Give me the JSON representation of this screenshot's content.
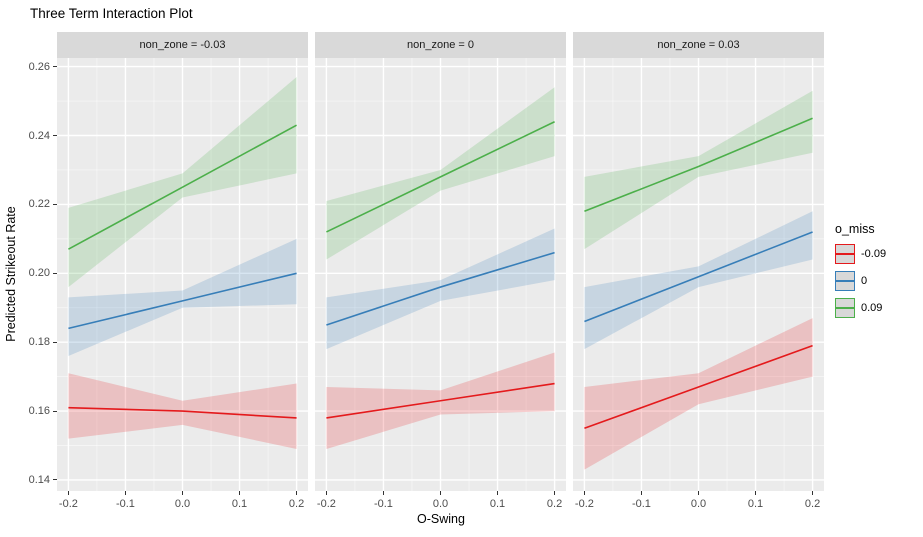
{
  "title": "Three Term Interaction Plot",
  "chart_data": {
    "type": "line",
    "title": "Three Term Interaction Plot",
    "xlabel": "O-Swing",
    "ylabel": "Predicted Strikeout Rate",
    "xlim": [
      -0.22,
      0.22
    ],
    "ylim": [
      0.1368,
      0.2625
    ],
    "grid": true,
    "panel_bg": "#EBEBEB",
    "strip_bg": "#D9D9D9",
    "grid_major_color": "#FFFFFF",
    "x_ticks": [
      -0.2,
      -0.1,
      0.0,
      0.1,
      0.2
    ],
    "x_tick_labels": [
      "-0.2",
      "-0.1",
      "0.0",
      "0.1",
      "0.2"
    ],
    "x_minor_ticks": [
      -0.15,
      -0.05,
      0.05,
      0.15
    ],
    "y_ticks": [
      0.14,
      0.16,
      0.18,
      0.2,
      0.22,
      0.24,
      0.26
    ],
    "y_tick_labels": [
      "0.14",
      "0.16",
      "0.18",
      "0.20",
      "0.22",
      "0.24",
      "0.26"
    ],
    "y_minor_ticks": [
      0.15,
      0.17,
      0.19,
      0.21,
      0.23,
      0.25
    ],
    "legend": {
      "title": "o_miss",
      "position": "right",
      "entries": [
        {
          "label": "-0.09",
          "color": "#E41A1C"
        },
        {
          "label": "0",
          "color": "#377EB8"
        },
        {
          "label": "0.09",
          "color": "#4CAF4A"
        }
      ]
    },
    "x": [
      -0.2,
      0,
      0.2
    ],
    "facets": [
      {
        "label": "non_zone = -0.03",
        "series": [
          {
            "name": "-0.09",
            "color": "#E41A1C",
            "y": [
              0.161,
              0.16,
              0.158
            ],
            "lo": [
              0.152,
              0.156,
              0.149
            ],
            "hi": [
              0.171,
              0.163,
              0.168
            ]
          },
          {
            "name": "0",
            "color": "#377EB8",
            "y": [
              0.184,
              0.192,
              0.2
            ],
            "lo": [
              0.176,
              0.19,
              0.191
            ],
            "hi": [
              0.193,
              0.195,
              0.21
            ]
          },
          {
            "name": "0.09",
            "color": "#4CAF4A",
            "y": [
              0.207,
              0.225,
              0.243
            ],
            "lo": [
              0.196,
              0.222,
              0.229
            ],
            "hi": [
              0.219,
              0.229,
              0.257
            ]
          }
        ]
      },
      {
        "label": "non_zone = 0",
        "series": [
          {
            "name": "-0.09",
            "color": "#E41A1C",
            "y": [
              0.158,
              0.163,
              0.168
            ],
            "lo": [
              0.149,
              0.159,
              0.16
            ],
            "hi": [
              0.167,
              0.166,
              0.177
            ]
          },
          {
            "name": "0",
            "color": "#377EB8",
            "y": [
              0.185,
              0.196,
              0.206
            ],
            "lo": [
              0.178,
              0.192,
              0.198
            ],
            "hi": [
              0.193,
              0.198,
              0.213
            ]
          },
          {
            "name": "0.09",
            "color": "#4CAF4A",
            "y": [
              0.212,
              0.228,
              0.244
            ],
            "lo": [
              0.204,
              0.224,
              0.234
            ],
            "hi": [
              0.221,
              0.23,
              0.254
            ]
          }
        ]
      },
      {
        "label": "non_zone = 0.03",
        "series": [
          {
            "name": "-0.09",
            "color": "#E41A1C",
            "y": [
              0.155,
              0.167,
              0.179
            ],
            "lo": [
              0.143,
              0.162,
              0.17
            ],
            "hi": [
              0.167,
              0.171,
              0.187
            ]
          },
          {
            "name": "0",
            "color": "#377EB8",
            "y": [
              0.186,
              0.199,
              0.212
            ],
            "lo": [
              0.178,
              0.196,
              0.204
            ],
            "hi": [
              0.196,
              0.202,
              0.218
            ]
          },
          {
            "name": "0.09",
            "color": "#4CAF4A",
            "y": [
              0.218,
              0.231,
              0.245
            ],
            "lo": [
              0.207,
              0.228,
              0.235
            ],
            "hi": [
              0.228,
              0.234,
              0.253
            ]
          }
        ]
      }
    ]
  }
}
